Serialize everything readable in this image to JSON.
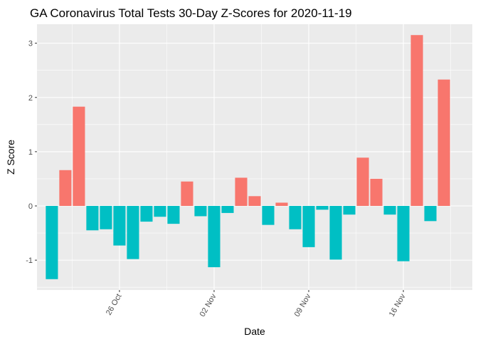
{
  "chart_data": {
    "type": "bar",
    "title": "GA Coronavirus Total Tests 30-Day Z-Scores for 2020-11-19",
    "xlabel": "Date",
    "ylabel": "Z Score",
    "ylim": [
      -1.55,
      3.35
    ],
    "y_ticks": [
      -1,
      0,
      1,
      2,
      3
    ],
    "y_tick_labels": [
      "-1",
      "0",
      "1",
      "2",
      "3"
    ],
    "x_ticks": [
      {
        "label": "26 Oct",
        "day_index": 5
      },
      {
        "label": "02 Nov",
        "day_index": 12
      },
      {
        "label": "09 Nov",
        "day_index": 19
      },
      {
        "label": "16 Nov",
        "day_index": 26
      }
    ],
    "x_range": [
      -1.1,
      31.1
    ],
    "categories": [
      "2020-10-21",
      "2020-10-22",
      "2020-10-23",
      "2020-10-24",
      "2020-10-25",
      "2020-10-26",
      "2020-10-27",
      "2020-10-28",
      "2020-10-29",
      "2020-10-30",
      "2020-10-31",
      "2020-11-01",
      "2020-11-02",
      "2020-11-03",
      "2020-11-04",
      "2020-11-05",
      "2020-11-06",
      "2020-11-07",
      "2020-11-08",
      "2020-11-09",
      "2020-11-10",
      "2020-11-11",
      "2020-11-12",
      "2020-11-13",
      "2020-11-14",
      "2020-11-15",
      "2020-11-16",
      "2020-11-17",
      "2020-11-18",
      "2020-11-19"
    ],
    "values": [
      -1.35,
      0.66,
      1.83,
      -0.45,
      -0.43,
      -0.73,
      -0.98,
      -0.29,
      -0.2,
      -0.33,
      0.45,
      -0.19,
      -1.13,
      -0.13,
      0.52,
      0.18,
      -0.35,
      0.06,
      -0.43,
      -0.76,
      -0.07,
      -0.99,
      -0.16,
      0.89,
      0.5,
      -0.16,
      -1.02,
      3.15,
      -0.28,
      2.33
    ],
    "colors": {
      "positive": "#f8766d",
      "negative": "#00bfc4"
    },
    "grid": true,
    "legend": "none"
  }
}
